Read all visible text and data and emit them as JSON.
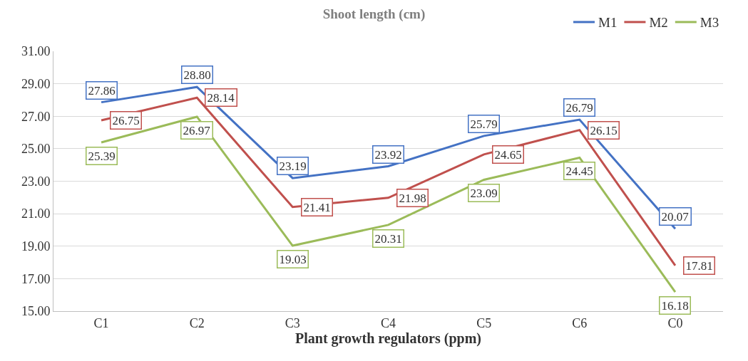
{
  "chart_data": {
    "type": "line",
    "title": "Shoot length (cm)",
    "xlabel": "Plant growth regulators (ppm)",
    "categories": [
      "C1",
      "C2",
      "C3",
      "C4",
      "C5",
      "C6",
      "C0"
    ],
    "series": [
      {
        "name": "M1",
        "color": "#4472c4",
        "values": [
          27.86,
          28.8,
          23.19,
          23.92,
          25.79,
          26.79,
          20.07
        ],
        "value_labels": [
          "27.86",
          "28.80",
          "23.19",
          "23.92",
          "25.79",
          "26.79",
          "20.07"
        ]
      },
      {
        "name": "M2",
        "color": "#c0504d",
        "values": [
          26.75,
          28.14,
          21.41,
          21.98,
          24.65,
          26.15,
          17.81
        ],
        "value_labels": [
          "26.75",
          "28.14",
          "21.41",
          "21.98",
          "24.65",
          "26.15",
          "17.81"
        ]
      },
      {
        "name": "M3",
        "color": "#9bbb59",
        "values": [
          25.39,
          26.97,
          19.03,
          20.31,
          23.09,
          24.45,
          16.18
        ],
        "value_labels": [
          "25.39",
          "26.97",
          "19.03",
          "20.31",
          "23.09",
          "24.45",
          "16.18"
        ]
      }
    ],
    "ylim": [
      15,
      31
    ],
    "yticks": [
      {
        "value": 15,
        "label": "15.00"
      },
      {
        "value": 17,
        "label": "17.00"
      },
      {
        "value": 19,
        "label": "19.00"
      },
      {
        "value": 21,
        "label": "21.00"
      },
      {
        "value": 23,
        "label": "23.00"
      },
      {
        "value": 25,
        "label": "25.00"
      },
      {
        "value": 27,
        "label": "27.00"
      },
      {
        "value": 29,
        "label": "29.00"
      },
      {
        "value": 31,
        "label": "31.00"
      }
    ],
    "grid": "y",
    "legend": "top right",
    "marker": "none",
    "line_style": "solid"
  }
}
